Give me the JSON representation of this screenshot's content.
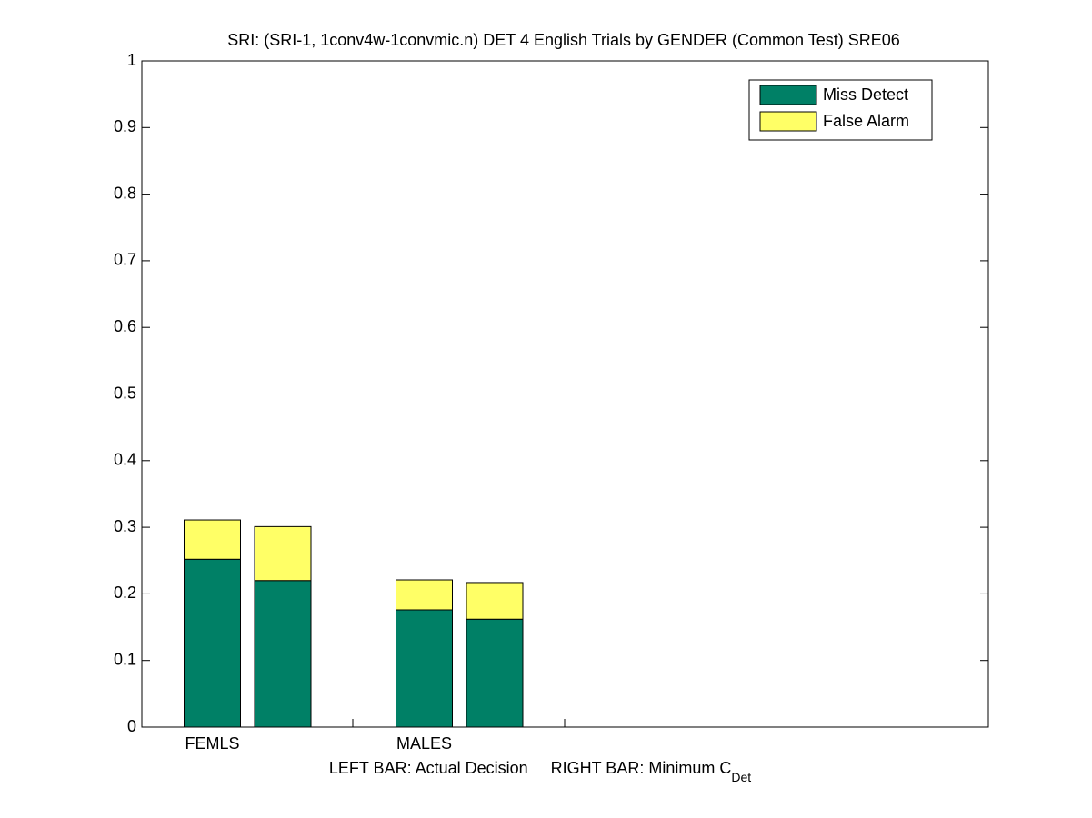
{
  "chart_data": {
    "type": "stacked_bar",
    "title": "SRI: (SRI-1, 1conv4w-1convmic.n) DET 4 English Trials by GENDER (Common Test) SRE06",
    "xlabel": "LEFT BAR: Actual Decision     RIGHT BAR: Minimum C",
    "xlabel_subscript": "Det",
    "categories": [
      "FEMLS",
      null,
      "MALES",
      null
    ],
    "series": [
      {
        "name": "Miss Detect",
        "color": "#008066",
        "values": [
          0.252,
          0.22,
          0.176,
          0.162
        ]
      },
      {
        "name": "False Alarm",
        "color": "#ffff66",
        "values": [
          0.059,
          0.081,
          0.045,
          0.055
        ]
      }
    ],
    "ylim": [
      0,
      1
    ],
    "yticks": [
      0,
      0.1,
      0.2,
      0.3,
      0.4,
      0.5,
      0.6,
      0.7,
      0.8,
      0.9,
      1
    ],
    "legend": "upper right"
  }
}
